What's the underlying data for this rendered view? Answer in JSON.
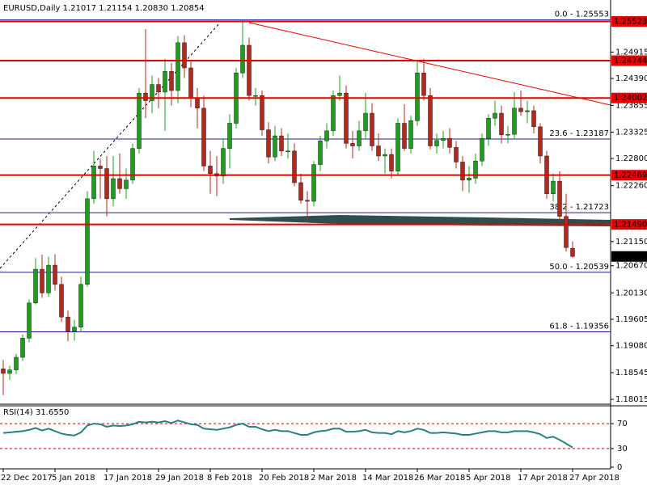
{
  "chart_data": {
    "type": "candlestick",
    "title": "EURUSD,Daily  1.21017 1.21154 1.20830 1.20854",
    "up_color": "#1e9e1e",
    "down_color": "#b0281e",
    "categories": [
      "22 Dec 2017",
      null,
      null,
      null,
      null,
      null,
      null,
      null,
      "5 Jan 2018",
      null,
      null,
      null,
      null,
      null,
      null,
      null,
      "17 Jan 2018",
      null,
      null,
      null,
      null,
      null,
      null,
      null,
      "29 Jan 2018",
      null,
      null,
      null,
      null,
      null,
      null,
      null,
      "8 Feb 2018",
      null,
      null,
      null,
      null,
      null,
      null,
      null,
      "20 Feb 2018",
      null,
      null,
      null,
      null,
      null,
      null,
      null,
      "2 Mar 2018",
      null,
      null,
      null,
      null,
      null,
      null,
      null,
      "14 Mar 2018",
      null,
      null,
      null,
      null,
      null,
      null,
      null,
      "26 Mar 2018",
      null,
      null,
      null,
      null,
      null,
      null,
      null,
      "5 Apr 2018",
      null,
      null,
      null,
      null,
      null,
      null,
      null,
      "17 Apr 2018",
      null,
      null,
      null,
      null,
      null,
      null,
      null,
      "27 Apr 2018"
    ],
    "open": [
      1.1862,
      1.1853,
      1.186,
      1.1885,
      1.1923,
      1.1993,
      1.206,
      1.2013,
      1.2068,
      1.203,
      1.1965,
      1.1937,
      1.1945,
      1.203,
      1.22,
      1.2265,
      1.226,
      1.22,
      1.224,
      1.222,
      1.2237,
      1.23,
      1.241,
      1.2395,
      1.2427,
      1.2412,
      1.2453,
      1.2415,
      1.251,
      1.246,
      1.24,
      1.238,
      1.2265,
      1.225,
      1.2245,
      1.23,
      1.235,
      1.245,
      1.2505,
      1.2405,
      1.2405,
      1.2337,
      1.2283,
      1.2325,
      1.2295,
      1.2295,
      1.2232,
      1.2197,
      1.2195,
      1.2268,
      1.2315,
      1.2335,
      1.2405,
      1.241,
      1.231,
      1.2305,
      1.2335,
      1.237,
      1.2305,
      1.2285,
      1.2288,
      1.2255,
      1.235,
      1.23,
      1.2355,
      1.245,
      1.2405,
      1.2305,
      1.2316,
      1.232,
      1.2302,
      1.2273,
      1.2237,
      1.2241,
      1.2275,
      1.232,
      1.236,
      1.237,
      1.2327,
      1.2328,
      1.238,
      1.2373,
      1.2375,
      1.2343,
      1.2285,
      1.221,
      1.2235,
      1.2165,
      1.21017
    ],
    "high": [
      1.188,
      1.1868,
      1.1892,
      1.193,
      1.2,
      1.2082,
      1.2089,
      1.2085,
      1.209,
      1.2045,
      1.1978,
      1.196,
      1.2045,
      1.2215,
      1.2295,
      1.228,
      1.2285,
      1.2285,
      1.229,
      1.226,
      1.231,
      1.242,
      1.2537,
      1.2445,
      1.244,
      1.2478,
      1.247,
      1.2523,
      1.2525,
      1.2475,
      1.242,
      1.2405,
      1.2295,
      1.2285,
      1.232,
      1.2368,
      1.246,
      1.2555,
      1.252,
      1.242,
      1.2415,
      1.2352,
      1.2345,
      1.234,
      1.233,
      1.231,
      1.225,
      1.2215,
      1.2275,
      1.2325,
      1.235,
      1.2415,
      1.2445,
      1.2425,
      1.2335,
      1.2355,
      1.241,
      1.239,
      1.233,
      1.23,
      1.23,
      1.236,
      1.2388,
      1.2365,
      1.2475,
      1.2478,
      1.242,
      1.233,
      1.2335,
      1.234,
      1.2315,
      1.2285,
      1.2265,
      1.229,
      1.233,
      1.2368,
      1.2395,
      1.2385,
      1.2345,
      1.2412,
      1.2415,
      1.2395,
      1.2385,
      1.235,
      1.2295,
      1.225,
      1.2255,
      1.221,
      1.21154
    ],
    "low": [
      1.181,
      1.184,
      1.1852,
      1.1878,
      1.1915,
      1.199,
      1.2003,
      1.2005,
      1.2018,
      1.1955,
      1.1917,
      1.1918,
      1.1935,
      1.2025,
      1.219,
      1.22,
      1.2165,
      1.2185,
      1.221,
      1.22,
      1.223,
      1.229,
      1.236,
      1.237,
      1.238,
      1.2335,
      1.2385,
      1.239,
      1.244,
      1.2382,
      1.234,
      1.2255,
      1.221,
      1.2205,
      1.223,
      1.226,
      1.234,
      1.244,
      1.2395,
      1.2385,
      1.2325,
      1.227,
      1.2275,
      1.2285,
      1.228,
      1.2225,
      1.219,
      1.2155,
      1.2185,
      1.2255,
      1.23,
      1.2325,
      1.2395,
      1.23,
      1.228,
      1.2295,
      1.232,
      1.2295,
      1.2275,
      1.225,
      1.224,
      1.2245,
      1.2295,
      1.229,
      1.2345,
      1.2395,
      1.2298,
      1.229,
      1.23,
      1.229,
      1.226,
      1.2215,
      1.2212,
      1.223,
      1.2265,
      1.2305,
      1.2345,
      1.231,
      1.231,
      1.232,
      1.2365,
      1.235,
      1.233,
      1.227,
      1.22,
      1.2195,
      1.2155,
      1.2095,
      1.2083
    ],
    "close": [
      1.1853,
      1.186,
      1.1885,
      1.1923,
      1.1993,
      1.206,
      1.2013,
      1.2068,
      1.203,
      1.1965,
      1.1937,
      1.1945,
      1.203,
      1.22,
      1.2265,
      1.226,
      1.22,
      1.224,
      1.222,
      1.2237,
      1.23,
      1.241,
      1.2395,
      1.2427,
      1.2412,
      1.2453,
      1.2415,
      1.251,
      1.246,
      1.24,
      1.238,
      1.2265,
      1.225,
      1.2245,
      1.23,
      1.235,
      1.245,
      1.2505,
      1.2405,
      1.2405,
      1.2337,
      1.2283,
      1.2325,
      1.2295,
      1.2295,
      1.2232,
      1.2197,
      1.2195,
      1.2268,
      1.2315,
      1.2335,
      1.2405,
      1.241,
      1.231,
      1.2305,
      1.2335,
      1.237,
      1.2305,
      1.2285,
      1.2288,
      1.2255,
      1.235,
      1.23,
      1.2355,
      1.245,
      1.2405,
      1.2305,
      1.2316,
      1.232,
      1.2302,
      1.2273,
      1.2237,
      1.2241,
      1.2275,
      1.232,
      1.236,
      1.237,
      1.2327,
      1.2328,
      1.238,
      1.2373,
      1.2375,
      1.2343,
      1.2285,
      1.221,
      1.2235,
      1.2165,
      1.2103,
      1.20854
    ],
    "ylim": [
      1.17919,
      1.25949
    ],
    "yticks": [
      1.24915,
      {
        "value": 1.2439,
        "label": "1.24390"
      },
      1.23855,
      1.23325,
      {
        "value": 1.228,
        "label": "1.22800"
      },
      {
        "value": 1.2226,
        "label": "1.22260"
      },
      {
        "value": 1.2115,
        "label": "1.21150"
      },
      {
        "value": 1.2067,
        "label": "1.20670"
      },
      {
        "value": 1.2013,
        "label": "1.20130"
      },
      1.19605,
      {
        "value": 1.1908,
        "label": "1.19080"
      },
      1.18545,
      1.18015
    ],
    "levels": [
      1.25523,
      1.24744,
      1.24002,
      1.22469,
      {
        "value": 1.2149,
        "label": "1.21490"
      }
    ],
    "level_color": "#e60000",
    "fibonacci": [
      {
        "value": 1.25553,
        "label": "0.0 - 1.25553"
      },
      {
        "value": 1.23187,
        "label": "23.6 - 1.23187"
      },
      {
        "value": 1.21723,
        "label": "38.2 - 1.21723"
      },
      {
        "value": 1.20539,
        "label": "50.0 - 1.20539"
      },
      {
        "value": 1.19356,
        "label": "61.8 - 1.19356"
      }
    ],
    "fibonacci_color": "#1a1aa0",
    "last_price": 1.20854,
    "rsi": {
      "title": "RSI(14) 31.6550",
      "color": "#2a8080",
      "ylim": [
        0,
        100
      ],
      "yticks": [
        70,
        30,
        0
      ],
      "level_lines": [
        70,
        30
      ],
      "values": [
        55,
        56,
        57,
        58,
        60,
        63,
        59,
        62,
        58,
        54,
        52,
        51,
        56,
        67,
        70,
        69,
        65,
        67,
        66,
        67,
        69,
        73,
        72,
        73,
        72,
        74,
        71,
        75,
        72,
        69,
        68,
        62,
        61,
        60,
        62,
        64,
        68,
        70,
        65,
        65,
        61,
        58,
        60,
        58,
        58,
        55,
        52,
        52,
        56,
        58,
        59,
        62,
        62,
        57,
        57,
        58,
        60,
        56,
        55,
        55,
        53,
        58,
        56,
        58,
        62,
        60,
        55,
        55,
        56,
        55,
        54,
        52,
        52,
        54,
        56,
        58,
        58,
        56,
        56,
        58,
        58,
        58,
        56,
        53,
        47,
        49,
        44,
        38,
        31.655
      ]
    }
  }
}
